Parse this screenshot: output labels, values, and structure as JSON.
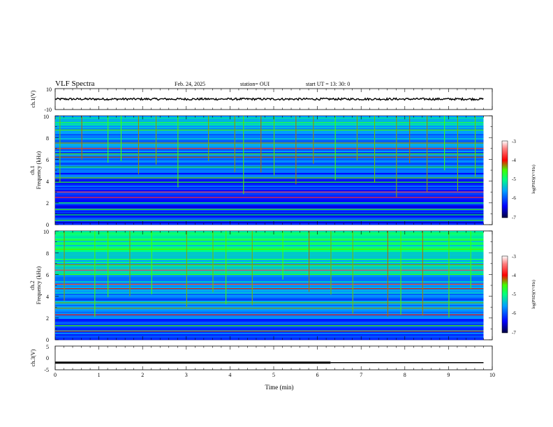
{
  "header": {
    "title": "VLF Spectra",
    "date": "Feb. 24, 2025",
    "station": "station= OUI",
    "start": "start  UT  =  13: 30: 0"
  },
  "chart_data": [
    {
      "type": "line",
      "panel": "ch1-waveform",
      "ylabel": "ch.1(V)",
      "ylim": [
        -10,
        10
      ],
      "y_ticks": [
        "10",
        "-10"
      ],
      "xlim": [
        0,
        10
      ],
      "series": [
        {
          "color": "#000000",
          "x": [
            0,
            9.8
          ],
          "y_mean": [
            0,
            0
          ],
          "y_amplitude": 1
        }
      ]
    },
    {
      "type": "heatmap",
      "panel": "ch1-spectrogram",
      "ylabel": "ch.1",
      "ylabel2": "Frequency (kHz)",
      "ylim": [
        0,
        10
      ],
      "xlim": [
        0,
        10
      ],
      "data_xlim": [
        0,
        9.8
      ],
      "y_ticks": [
        "0",
        "2",
        "4",
        "6",
        "8",
        "10"
      ],
      "colorbar": {
        "label": "log(PSD)(V²/Hz)",
        "range": [
          -7,
          -3
        ],
        "ticks": [
          "-3",
          "-4",
          "-5",
          "-6",
          "-7"
        ]
      },
      "bands": [
        {
          "f": 0.4,
          "level": -4.6
        },
        {
          "f": 0.9,
          "level": -4.9
        },
        {
          "f": 1.4,
          "level": -4.5
        },
        {
          "f": 2.0,
          "level": -4.8
        },
        {
          "f": 2.5,
          "level": -3.8
        },
        {
          "f": 3.0,
          "level": -3.6
        },
        {
          "f": 3.9,
          "level": -4.6
        },
        {
          "f": 4.3,
          "level": -4.4
        },
        {
          "f": 5.3,
          "level": -4.7
        },
        {
          "f": 6.2,
          "level": -4.2
        },
        {
          "f": 6.5,
          "level": -4.5
        },
        {
          "f": 7.0,
          "level": -3.9
        },
        {
          "f": 7.5,
          "level": -4.3
        },
        {
          "f": 8.7,
          "level": -4.5
        },
        {
          "f": 9.4,
          "level": -4.8
        }
      ],
      "background_low": -6.3,
      "background_high": -5.4,
      "spike_times": [
        0.1,
        0.6,
        1.2,
        1.5,
        1.9,
        2.3,
        2.8,
        3.5,
        4.1,
        4.3,
        4.7,
        5.0,
        5.5,
        5.9,
        6.4,
        6.9,
        7.3,
        7.8,
        8.1,
        8.5,
        8.9,
        9.2,
        9.6
      ]
    },
    {
      "type": "heatmap",
      "panel": "ch2-spectrogram",
      "ylabel": "ch.2",
      "ylabel2": "Frequency (kHz)",
      "ylim": [
        0,
        10
      ],
      "xlim": [
        0,
        10
      ],
      "data_xlim": [
        0,
        9.8
      ],
      "y_ticks": [
        "0",
        "2",
        "4",
        "6",
        "8",
        "10"
      ],
      "colorbar": {
        "label": "log(PSD)(V²/Hz)",
        "range": [
          -7,
          -3
        ],
        "ticks": [
          "-3",
          "-4",
          "-5",
          "-6",
          "-7"
        ]
      },
      "bands": [
        {
          "f": 0.8,
          "level": -4.2
        },
        {
          "f": 1.3,
          "level": -4.5
        },
        {
          "f": 2.3,
          "level": -4.0
        },
        {
          "f": 2.9,
          "level": -4.3
        },
        {
          "f": 3.4,
          "level": -4.4
        },
        {
          "f": 4.7,
          "level": -4.1
        },
        {
          "f": 5.1,
          "level": -3.8
        },
        {
          "f": 6.0,
          "level": -4.6
        },
        {
          "f": 6.4,
          "level": -3.7
        },
        {
          "f": 6.9,
          "level": -4.3
        },
        {
          "f": 7.4,
          "level": -4.8
        },
        {
          "f": 8.3,
          "level": -4.5
        }
      ],
      "background_low": -6.0,
      "background_high": -4.9,
      "spike_times": [
        0.2,
        0.9,
        1.2,
        1.7,
        2.2,
        3.0,
        3.6,
        3.9,
        4.5,
        5.2,
        5.8,
        6.3,
        6.8,
        7.6,
        7.9,
        8.4,
        9.0,
        9.5
      ]
    },
    {
      "type": "line",
      "panel": "ch3-voltage",
      "ylabel": "ch.3(V)",
      "ylim": [
        -5,
        5
      ],
      "y_ticks": [
        "5",
        "0",
        "-5"
      ],
      "xlim": [
        0,
        10
      ],
      "xlabel": "Time (min)",
      "x_ticks": [
        "0",
        "1",
        "2",
        "3",
        "4",
        "5",
        "6",
        "7",
        "8",
        "9",
        "10"
      ],
      "series": [
        {
          "color": "#000000",
          "x": [
            0,
            6.3,
            9.8
          ],
          "y": [
            -2,
            -2,
            -2
          ],
          "thick_until": 6.3
        }
      ]
    }
  ]
}
